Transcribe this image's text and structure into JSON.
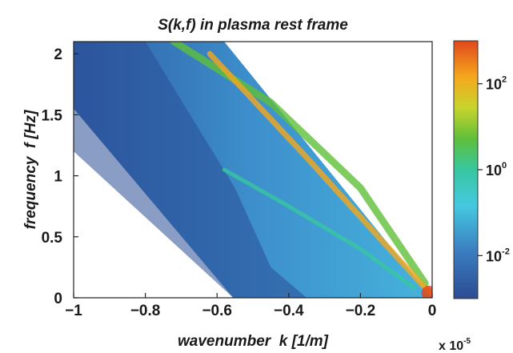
{
  "chart_data": {
    "type": "heatmap",
    "title": "S(k,f) in plasma rest frame",
    "xlabel": "wavenumber  k [1/m]",
    "ylabel": "frequency  f [Hz]",
    "x_multiplier": "x 10",
    "x_multiplier_exp": "-5",
    "xlim": [
      -1,
      0
    ],
    "ylim": [
      0,
      2.1
    ],
    "xticks": [
      "-1",
      "-0.8",
      "-0.6",
      "-0.4",
      "-0.2",
      "0"
    ],
    "yticks": [
      "0",
      "0.5",
      "1",
      "1.5",
      "2"
    ],
    "xtick_values": [
      -1,
      -0.8,
      -0.6,
      -0.4,
      -0.2,
      0
    ],
    "ytick_values": [
      0,
      0.5,
      1,
      1.5,
      2
    ],
    "colorbar": {
      "scale": "log",
      "range": [
        0.001,
        1000
      ],
      "ticks": [
        {
          "base": "10",
          "exp": "2",
          "value": 100
        },
        {
          "base": "10",
          "exp": "0",
          "value": 1
        },
        {
          "base": "10",
          "exp": "-2",
          "value": 0.01
        }
      ],
      "colors": [
        "#2c4c93",
        "#3a7cc0",
        "#45c8e0",
        "#37c7a0",
        "#5fbf3a",
        "#c8d42c",
        "#f5a71d",
        "#e0481b"
      ]
    },
    "data_region": {
      "description_boundaries_in_data_units": true,
      "left_edge": [
        [
          -1,
          1.55
        ],
        [
          -0.555,
          0
        ]
      ],
      "right_edge": [
        [
          -0.58,
          2.1
        ],
        [
          0,
          0
        ]
      ],
      "top": 2.1
    },
    "ridges": [
      {
        "points": [
          [
            -0.72,
            2.1
          ],
          [
            -0.45,
            1.6
          ],
          [
            -0.2,
            0.9
          ],
          [
            -0.02,
            0.12
          ]
        ],
        "level": 0.55
      },
      {
        "points": [
          [
            -0.62,
            2.0
          ],
          [
            -0.35,
            1.15
          ],
          [
            -0.15,
            0.5
          ],
          [
            -0.01,
            0.05
          ]
        ],
        "level": 0.85
      },
      {
        "points": [
          [
            -0.58,
            1.05
          ],
          [
            -0.4,
            0.75
          ],
          [
            -0.2,
            0.4
          ],
          [
            -0.05,
            0.08
          ]
        ],
        "level": 0.45
      }
    ]
  }
}
